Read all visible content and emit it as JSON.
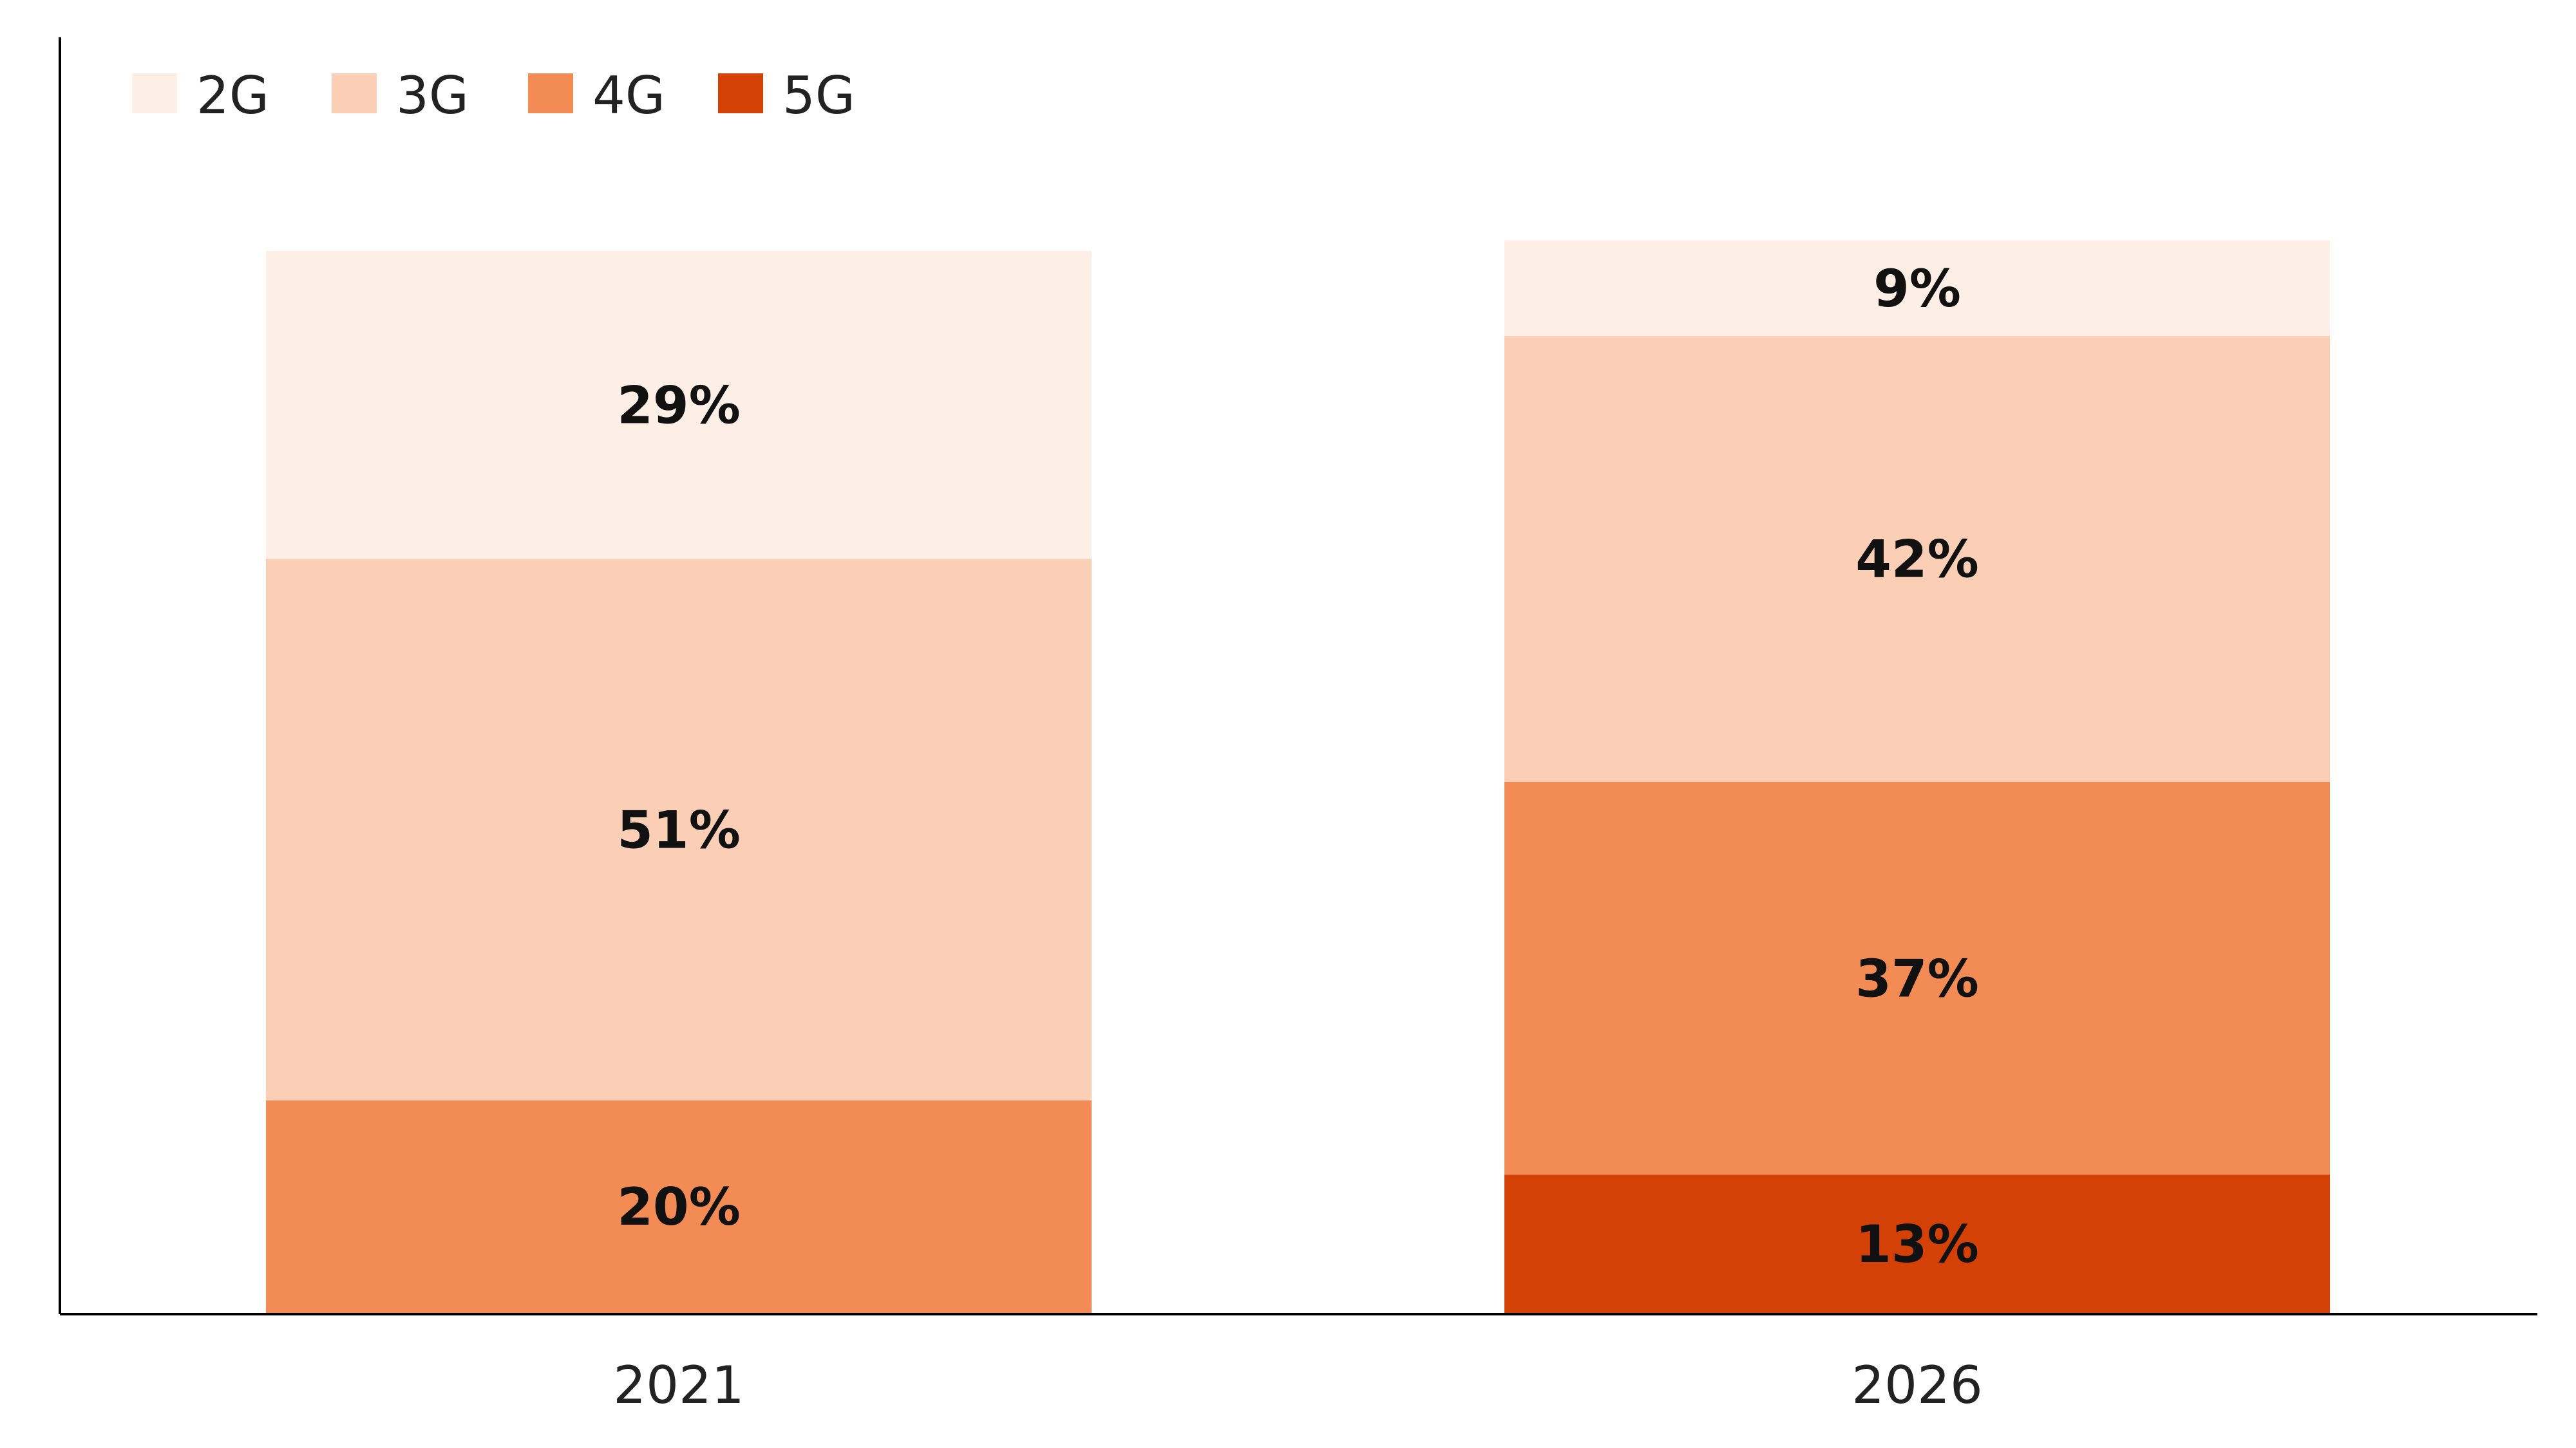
{
  "chart_data": {
    "type": "bar",
    "stacked": true,
    "categories": [
      "2021",
      "2026"
    ],
    "series": [
      {
        "name": "2G",
        "color": "#FDEFE6",
        "values": [
          29,
          9
        ]
      },
      {
        "name": "3G",
        "color": "#FBCFB5",
        "values": [
          51,
          42
        ]
      },
      {
        "name": "4G",
        "color": "#F28B54",
        "values": [
          20,
          37
        ]
      },
      {
        "name": "5G",
        "color": "#D44106",
        "values": [
          0,
          13
        ]
      }
    ],
    "data_labels": [
      [
        "29%",
        "9%"
      ],
      [
        "51%",
        "42%"
      ],
      [
        "20%",
        "37%"
      ],
      [
        "",
        "13%"
      ]
    ],
    "ylim": [
      0,
      100
    ],
    "grid": false,
    "legend_position": "top-left"
  }
}
